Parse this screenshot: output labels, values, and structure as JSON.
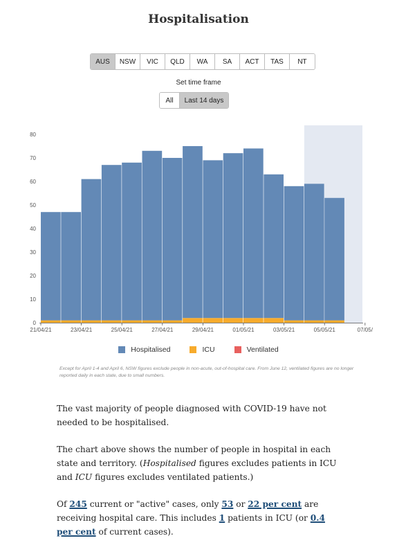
{
  "title": "Hospitalisation",
  "states": [
    "AUS",
    "NSW",
    "VIC",
    "QLD",
    "WA",
    "SA",
    "ACT",
    "TAS",
    "NT"
  ],
  "selected_state": "AUS",
  "timeframe": {
    "label": "Set time frame",
    "options": [
      "All",
      "Last 14 days"
    ],
    "selected": "Last 14 days"
  },
  "colors": {
    "hospitalised": "#6389b6",
    "icu": "#f7ab2c",
    "ventilated": "#e8605e",
    "shade": "#e4e9f2"
  },
  "chart_data": {
    "type": "bar",
    "stacked": true,
    "categories": [
      "21/04/21",
      "22/04/21",
      "23/04/21",
      "24/04/21",
      "25/04/21",
      "26/04/21",
      "27/04/21",
      "28/04/21",
      "29/04/21",
      "30/04/21",
      "01/05/21",
      "02/05/21",
      "03/05/21",
      "04/05/21",
      "05/05/21",
      "06/05/21"
    ],
    "series": [
      {
        "name": "Hospitalised",
        "values": [
          46,
          46,
          60,
          66,
          67,
          72,
          69,
          73,
          67,
          70,
          72,
          61,
          57,
          58,
          52,
          null
        ]
      },
      {
        "name": "ICU",
        "values": [
          1,
          1,
          1,
          1,
          1,
          1,
          1,
          2,
          2,
          2,
          2,
          2,
          1,
          1,
          1,
          null
        ]
      },
      {
        "name": "Ventilated",
        "values": [
          0,
          0,
          0,
          0,
          0,
          0,
          0,
          0,
          0,
          0,
          0,
          0,
          0,
          0,
          0,
          null
        ]
      }
    ],
    "x_ticks": [
      "21/04/21",
      "23/04/21",
      "25/04/21",
      "27/04/21",
      "29/04/21",
      "01/05/21",
      "03/05/21",
      "05/05/21",
      "07/05/"
    ],
    "y_ticks": [
      0,
      10,
      20,
      30,
      40,
      50,
      60,
      70,
      80
    ],
    "ylim": [
      0,
      80
    ],
    "shaded_from": "04/05/21",
    "legend": [
      "Hospitalised",
      "ICU",
      "Ventilated"
    ],
    "legend_position": "bottom"
  },
  "footnote": "Except for April 1-4 and April 6, NSW figures exclude people in non-acute, out-of-hospital care. From June 12, ventilated figures are no longer reported daily in each state, due to small numbers.",
  "paragraph1": "The vast majority of people diagnosed with COVID-19 have not needed to be hospitalised.",
  "paragraph2": {
    "text1": "The chart above shows the number of people in hospital in each state and territory. (",
    "em1": "Hospitalised",
    "text2": " figures excludes patients in ICU and ",
    "em2": "ICU",
    "text3": " figures excludes ventilated patients.)"
  },
  "paragraph3": {
    "t1": "Of ",
    "active_cases": "245",
    "t2": " current or \"active\" cases, only ",
    "hospital_count": "53",
    "t3": " or ",
    "hospital_pct": "22 per cent",
    "t4": " are receiving hospital care. This includes ",
    "icu_count": "1",
    "t5": " patients in ICU (or ",
    "icu_pct": "0.4 per cent",
    "t6": " of current cases)."
  }
}
